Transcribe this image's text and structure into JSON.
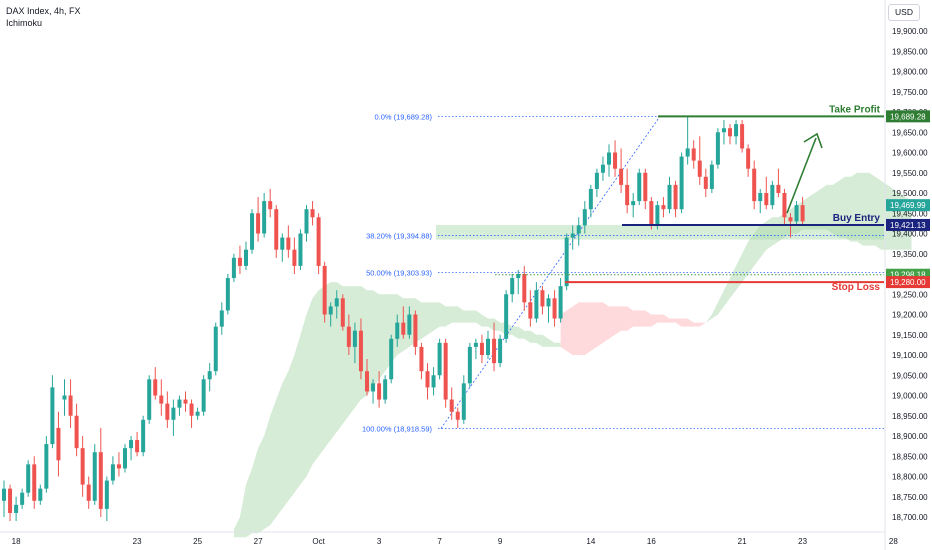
{
  "header": {
    "symbol": "DAX Index, 4h, FX",
    "indicator": "Ichimoku"
  },
  "currency": "USD",
  "colors": {
    "up": "#26a69a",
    "down": "#ef5350",
    "fib": "#2962ff",
    "tp": "#2e7d32",
    "entry": "#1a237e",
    "sl": "#e53935",
    "cloud_bull": "#c8e6c9",
    "cloud_bear": "#ffcdd2",
    "arrow": "#2e7d32"
  },
  "chart_data": {
    "type": "candlestick",
    "timeframe": "4h",
    "ylim": [
      18650,
      19990
    ],
    "y_ticks": [
      "18,700.00",
      "18,750.00",
      "18,800.00",
      "18,850.00",
      "18,900.00",
      "18,950.00",
      "19,000.00",
      "19,050.00",
      "19,100.00",
      "19,150.00",
      "19,200.00",
      "19,250.00",
      "19,300.00",
      "19,350.00",
      "19,400.00",
      "19,450.00",
      "19,500.00",
      "19,550.00",
      "19,600.00",
      "19,650.00",
      "19,700.00",
      "19,750.00",
      "19,800.00",
      "19,850.00",
      "19,900.00"
    ],
    "x_ticks": [
      {
        "label": "18",
        "bar": 2
      },
      {
        "label": "23",
        "bar": 22
      },
      {
        "label": "25",
        "bar": 32
      },
      {
        "label": "27",
        "bar": 42
      },
      {
        "label": "Oct",
        "bar": 52
      },
      {
        "label": "3",
        "bar": 62
      },
      {
        "label": "7",
        "bar": 72
      },
      {
        "label": "9",
        "bar": 82
      },
      {
        "label": "14",
        "bar": 97
      },
      {
        "label": "16",
        "bar": 107
      },
      {
        "label": "21",
        "bar": 122
      },
      {
        "label": "23",
        "bar": 132
      },
      {
        "label": "28",
        "bar": 147
      }
    ],
    "candles": [
      [
        18740,
        18790,
        18700,
        18770
      ],
      [
        18770,
        18780,
        18690,
        18710
      ],
      [
        18710,
        18750,
        18690,
        18730
      ],
      [
        18730,
        18770,
        18720,
        18760
      ],
      [
        18760,
        18840,
        18750,
        18830
      ],
      [
        18830,
        18850,
        18720,
        18740
      ],
      [
        18740,
        18780,
        18730,
        18770
      ],
      [
        18770,
        18900,
        18760,
        18880
      ],
      [
        18880,
        19050,
        18870,
        19020
      ],
      [
        18920,
        18960,
        18800,
        18840
      ],
      [
        18990,
        19040,
        18950,
        19000
      ],
      [
        19000,
        19040,
        18920,
        18950
      ],
      [
        18950,
        18980,
        18850,
        18870
      ],
      [
        18870,
        18900,
        18750,
        18780
      ],
      [
        18780,
        18800,
        18720,
        18740
      ],
      [
        18740,
        18880,
        18730,
        18860
      ],
      [
        18860,
        18920,
        18700,
        18720
      ],
      [
        18720,
        18800,
        18690,
        18790
      ],
      [
        18790,
        18850,
        18780,
        18830
      ],
      [
        18830,
        18860,
        18800,
        18820
      ],
      [
        18820,
        18880,
        18810,
        18870
      ],
      [
        18870,
        18900,
        18840,
        18890
      ],
      [
        18890,
        18910,
        18850,
        18860
      ],
      [
        18860,
        18950,
        18850,
        18940
      ],
      [
        18940,
        19050,
        18930,
        19040
      ],
      [
        19040,
        19070,
        18990,
        19000
      ],
      [
        19000,
        19040,
        18950,
        18980
      ],
      [
        18980,
        19010,
        18920,
        18940
      ],
      [
        18940,
        18990,
        18900,
        18970
      ],
      [
        18970,
        19000,
        18950,
        18990
      ],
      [
        18990,
        19010,
        18960,
        18980
      ],
      [
        18980,
        18990,
        18920,
        18950
      ],
      [
        18950,
        18970,
        18940,
        18960
      ],
      [
        18960,
        19050,
        18950,
        19040
      ],
      [
        19040,
        19080,
        19010,
        19060
      ],
      [
        19060,
        19180,
        19050,
        19170
      ],
      [
        19170,
        19230,
        19150,
        19210
      ],
      [
        19210,
        19300,
        19200,
        19290
      ],
      [
        19290,
        19350,
        19280,
        19340
      ],
      [
        19340,
        19370,
        19300,
        19320
      ],
      [
        19320,
        19380,
        19310,
        19360
      ],
      [
        19360,
        19460,
        19350,
        19450
      ],
      [
        19450,
        19490,
        19380,
        19400
      ],
      [
        19400,
        19500,
        19390,
        19480
      ],
      [
        19480,
        19510,
        19440,
        19460
      ],
      [
        19460,
        19470,
        19340,
        19360
      ],
      [
        19360,
        19400,
        19330,
        19390
      ],
      [
        19390,
        19420,
        19340,
        19360
      ],
      [
        19360,
        19390,
        19300,
        19320
      ],
      [
        19320,
        19410,
        19310,
        19400
      ],
      [
        19400,
        19470,
        19380,
        19460
      ],
      [
        19460,
        19480,
        19420,
        19440
      ],
      [
        19440,
        19450,
        19300,
        19320
      ],
      [
        19320,
        19330,
        19180,
        19200
      ],
      [
        19200,
        19230,
        19170,
        19220
      ],
      [
        19220,
        19260,
        19190,
        19240
      ],
      [
        19240,
        19250,
        19160,
        19170
      ],
      [
        19170,
        19200,
        19100,
        19120
      ],
      [
        19120,
        19180,
        19080,
        19160
      ],
      [
        19160,
        19190,
        19040,
        19060
      ],
      [
        19060,
        19090,
        19000,
        19010
      ],
      [
        19010,
        19040,
        18980,
        19030
      ],
      [
        19030,
        19060,
        18970,
        18990
      ],
      [
        18990,
        19050,
        18980,
        19040
      ],
      [
        19040,
        19150,
        19030,
        19140
      ],
      [
        19140,
        19200,
        19120,
        19180
      ],
      [
        19180,
        19220,
        19140,
        19150
      ],
      [
        19150,
        19220,
        19140,
        19200
      ],
      [
        19200,
        19210,
        19100,
        19120
      ],
      [
        19120,
        19130,
        19040,
        19060
      ],
      [
        19060,
        19080,
        18990,
        19020
      ],
      [
        19020,
        19070,
        19000,
        19050
      ],
      [
        19050,
        19140,
        19040,
        19130
      ],
      [
        19130,
        19140,
        18970,
        18990
      ],
      [
        18990,
        19020,
        18940,
        18960
      ],
      [
        18960,
        18970,
        18920,
        18940
      ],
      [
        18940,
        19050,
        18930,
        19030
      ],
      [
        19030,
        19130,
        19020,
        19120
      ],
      [
        19120,
        19140,
        19090,
        19130
      ],
      [
        19130,
        19150,
        19080,
        19100
      ],
      [
        19100,
        19160,
        19090,
        19140
      ],
      [
        19140,
        19180,
        19060,
        19080
      ],
      [
        19080,
        19150,
        19070,
        19140
      ],
      [
        19140,
        19260,
        19130,
        19250
      ],
      [
        19250,
        19300,
        19230,
        19290
      ],
      [
        19290,
        19310,
        19250,
        19300
      ],
      [
        19300,
        19320,
        19210,
        19230
      ],
      [
        19230,
        19260,
        19170,
        19190
      ],
      [
        19190,
        19280,
        19180,
        19260
      ],
      [
        19260,
        19270,
        19200,
        19220
      ],
      [
        19220,
        19250,
        19180,
        19240
      ],
      [
        19240,
        19260,
        19170,
        19190
      ],
      [
        19190,
        19290,
        19180,
        19270
      ],
      [
        19270,
        19400,
        19260,
        19390
      ],
      [
        19390,
        19420,
        19360,
        19400
      ],
      [
        19400,
        19440,
        19370,
        19420
      ],
      [
        19420,
        19480,
        19400,
        19460
      ],
      [
        19460,
        19520,
        19440,
        19510
      ],
      [
        19510,
        19560,
        19490,
        19550
      ],
      [
        19550,
        19590,
        19530,
        19570
      ],
      [
        19570,
        19620,
        19540,
        19600
      ],
      [
        19600,
        19630,
        19540,
        19560
      ],
      [
        19560,
        19610,
        19500,
        19520
      ],
      [
        19520,
        19560,
        19450,
        19470
      ],
      [
        19470,
        19500,
        19440,
        19480
      ],
      [
        19480,
        19560,
        19470,
        19550
      ],
      [
        19550,
        19560,
        19460,
        19480
      ],
      [
        19480,
        19490,
        19410,
        19420
      ],
      [
        19420,
        19480,
        19410,
        19470
      ],
      [
        19470,
        19490,
        19440,
        19460
      ],
      [
        19460,
        19540,
        19450,
        19520
      ],
      [
        19520,
        19530,
        19440,
        19460
      ],
      [
        19460,
        19600,
        19450,
        19590
      ],
      [
        19590,
        19689,
        19570,
        19610
      ],
      [
        19610,
        19630,
        19560,
        19580
      ],
      [
        19580,
        19640,
        19520,
        19540
      ],
      [
        19540,
        19560,
        19490,
        19510
      ],
      [
        19510,
        19580,
        19500,
        19570
      ],
      [
        19570,
        19660,
        19560,
        19650
      ],
      [
        19650,
        19680,
        19620,
        19660
      ],
      [
        19660,
        19670,
        19620,
        19640
      ],
      [
        19640,
        19680,
        19620,
        19670
      ],
      [
        19670,
        19680,
        19600,
        19610
      ],
      [
        19610,
        19620,
        19540,
        19560
      ],
      [
        19560,
        19580,
        19460,
        19480
      ],
      [
        19480,
        19510,
        19450,
        19500
      ],
      [
        19500,
        19540,
        19460,
        19470
      ],
      [
        19470,
        19530,
        19460,
        19520
      ],
      [
        19520,
        19560,
        19490,
        19500
      ],
      [
        19500,
        19510,
        19420,
        19440
      ],
      [
        19440,
        19450,
        19390,
        19430
      ],
      [
        19430,
        19480,
        19420,
        19470
      ],
      [
        19470,
        19490,
        19420,
        19430
      ]
    ],
    "fib_levels": [
      {
        "label": "0.0% (19,689.28)",
        "value": 19689.28
      },
      {
        "label": "38.20% (19,394.88)",
        "value": 19394.88
      },
      {
        "label": "50.00% (19,303.93)",
        "value": 19303.93
      },
      {
        "label": "100.00% (18,918.59)",
        "value": 18918.59
      }
    ],
    "levels": {
      "take_profit": {
        "label": "Take Profit",
        "value": 19689.28,
        "tag": "19,689.28"
      },
      "buy_entry": {
        "label": "Buy Entry",
        "value": 19421.13,
        "tag": "19,421.13"
      },
      "stop_loss": {
        "label": "Stop Loss",
        "value": 19280.0,
        "tag": "19,280.00"
      }
    },
    "price_tags": [
      {
        "value": 19469.99,
        "text": "19,469.99",
        "color": "#26a69a"
      },
      {
        "value": 19298.18,
        "text": "19,298.18",
        "color": "#43a047"
      }
    ],
    "ichimoku_cloud": [
      {
        "from": 38,
        "to": 92,
        "top": [
          18670,
          18700,
          18780,
          18820,
          18870,
          18900,
          18950,
          18990,
          19030,
          19060,
          19100,
          19150,
          19200,
          19240,
          19260,
          19270,
          19280,
          19280,
          19270,
          19270,
          19270,
          19270,
          19260,
          19260,
          19250,
          19250,
          19250,
          19250,
          19240,
          19240,
          19240,
          19230,
          19230,
          19230,
          19230,
          19220,
          19220,
          19220,
          19210,
          19210,
          19210,
          19200,
          19190,
          19190,
          19180,
          19180,
          19170,
          19170,
          19160,
          19160,
          19150,
          19150,
          19140,
          19130,
          19130
        ],
        "bottom": [
          18650,
          18650,
          18650,
          18660,
          18660,
          18670,
          18680,
          18700,
          18720,
          18740,
          18760,
          18780,
          18800,
          18830,
          18850,
          18870,
          18890,
          18910,
          18930,
          18950,
          18970,
          18990,
          19000,
          19020,
          19040,
          19060,
          19080,
          19100,
          19110,
          19120,
          19130,
          19140,
          19150,
          19160,
          19170,
          19170,
          19180,
          19180,
          19180,
          19180,
          19180,
          19170,
          19170,
          19160,
          19160,
          19150,
          19150,
          19140,
          19140,
          19130,
          19130,
          19120,
          19120,
          19120,
          19120
        ],
        "kind": "bull"
      },
      {
        "from": 92,
        "to": 116,
        "top": [
          19200,
          19210,
          19220,
          19230,
          19230,
          19230,
          19230,
          19230,
          19220,
          19220,
          19220,
          19220,
          19210,
          19210,
          19210,
          19200,
          19200,
          19200,
          19190,
          19190,
          19190,
          19190,
          19180,
          19180,
          19180
        ],
        "bottom": [
          19120,
          19110,
          19100,
          19100,
          19100,
          19110,
          19120,
          19130,
          19140,
          19150,
          19160,
          19160,
          19170,
          19170,
          19170,
          19170,
          19180,
          19180,
          19180,
          19180,
          19170,
          19170,
          19170,
          19170,
          19180
        ],
        "kind": "bear"
      },
      {
        "from": 116,
        "to": 150,
        "top": [
          19180,
          19200,
          19230,
          19260,
          19290,
          19320,
          19350,
          19380,
          19400,
          19420,
          19430,
          19440,
          19440,
          19450,
          19460,
          19470,
          19480,
          19490,
          19500,
          19510,
          19520,
          19520,
          19530,
          19540,
          19540,
          19550,
          19550,
          19550,
          19540,
          19530,
          19520,
          19510,
          19500,
          19490,
          19480
        ],
        "bottom": [
          19180,
          19190,
          19200,
          19220,
          19240,
          19260,
          19280,
          19300,
          19320,
          19340,
          19360,
          19370,
          19380,
          19390,
          19400,
          19400,
          19410,
          19410,
          19410,
          19410,
          19410,
          19400,
          19390,
          19390,
          19380,
          19380,
          19370,
          19370,
          19370,
          19360,
          19360,
          19360,
          19360,
          19360,
          19360
        ],
        "kind": "bull"
      }
    ]
  }
}
